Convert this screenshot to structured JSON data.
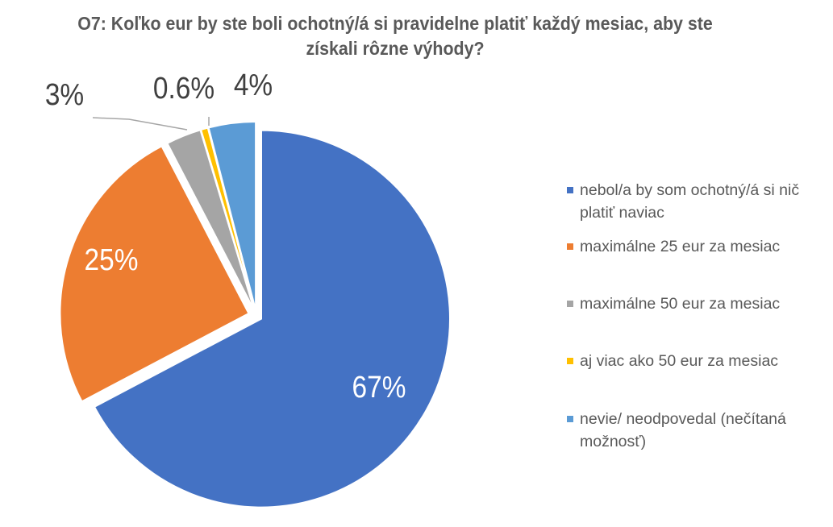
{
  "chart_data": {
    "type": "pie",
    "title": "O7: Koľko eur by ste boli ochotný/á si pravidelne platiť každý mesiac, aby ste získali rôzne výhody?",
    "legend_position": "right",
    "slices": [
      {
        "label": "nebol/a by som ochotný/á si nič platiť naviac",
        "value": 67,
        "data_label": "67%",
        "color": "#4472C4"
      },
      {
        "label": "maximálne 25 eur za mesiac",
        "value": 25,
        "data_label": "25%",
        "color": "#ED7D31"
      },
      {
        "label": "maximálne 50 eur za mesiac",
        "value": 3,
        "data_label": "3%",
        "color": "#A5A5A5"
      },
      {
        "label": "aj viac ako 50 eur za mesiac",
        "value": 0.6,
        "data_label": "0.6%",
        "color": "#FFC000"
      },
      {
        "label": "nevie/ neodpovedal (nečítaná možnosť)",
        "value": 4,
        "data_label": "4%",
        "color": "#5B9BD5"
      }
    ]
  }
}
